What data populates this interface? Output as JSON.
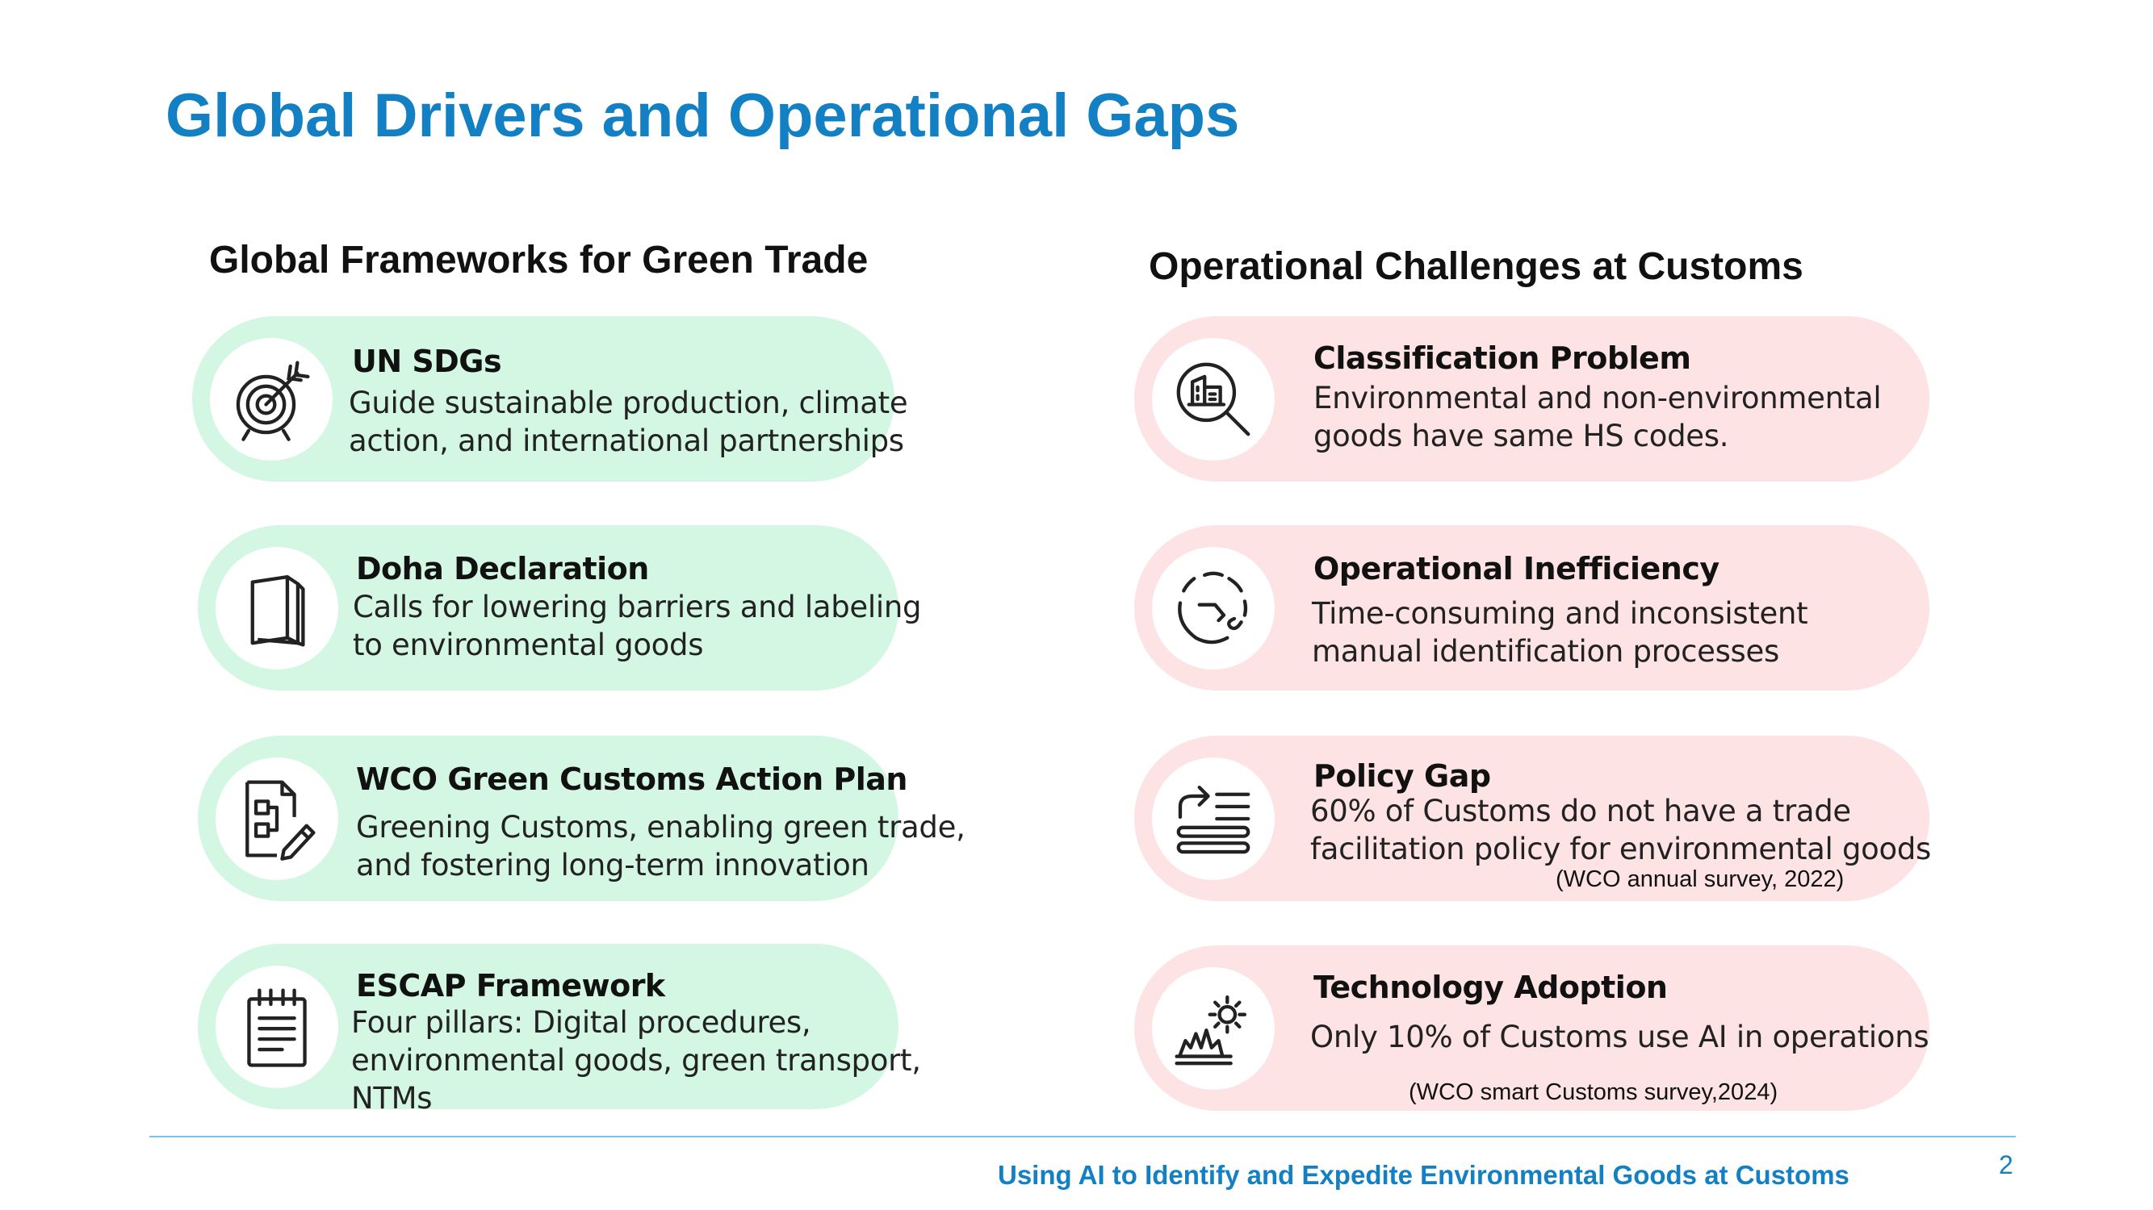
{
  "title": "Global Drivers and Operational Gaps",
  "left_column": {
    "heading": "Global Frameworks for Green Trade",
    "cards": [
      {
        "icon": "target-icon",
        "title": "UN SDGs",
        "desc_lines": [
          "Guide sustainable production, climate",
          "action, and international partnerships"
        ]
      },
      {
        "icon": "book-icon",
        "title": "Doha Declaration",
        "desc_lines": [
          "Calls for lowering barriers and labeling",
          "to environmental goods"
        ]
      },
      {
        "icon": "document-edit-icon",
        "title": "WCO Green Customs Action Plan",
        "desc_lines": [
          "Greening Customs, enabling green trade,",
          "and fostering long-term innovation"
        ]
      },
      {
        "icon": "notepad-icon",
        "title": "ESCAP Framework",
        "desc_lines": [
          "Four pillars: Digital procedures,",
          "environmental goods, green transport,",
          "NTMs"
        ]
      }
    ]
  },
  "right_column": {
    "heading": "Operational Challenges at Customs",
    "cards": [
      {
        "icon": "search-building-icon",
        "title": "Classification Problem",
        "desc_lines": [
          "Environmental and non-environmental",
          "goods have same HS codes."
        ]
      },
      {
        "icon": "dashed-cycle-icon",
        "title": "Operational Inefficiency",
        "desc_lines": [
          "Time-consuming and inconsistent",
          "manual identification processes"
        ]
      },
      {
        "icon": "policy-list-icon",
        "title": "Policy Gap",
        "desc_lines": [
          "60% of Customs do not have a trade",
          "facilitation policy for environmental goods"
        ],
        "note": "(WCO annual survey, 2022)"
      },
      {
        "icon": "factory-gear-icon",
        "title": "Technology Adoption",
        "desc_lines": [
          "Only 10% of Customs use AI in operations"
        ],
        "note": "(WCO smart Customs survey,2024)"
      }
    ]
  },
  "footer": {
    "text": "Using AI to Identify and Expedite Environmental Goods at Customs",
    "page_number": "2"
  },
  "colors": {
    "title_blue": "#1480c4",
    "green_card": "#d4f7e4",
    "pink_card": "#fde3e4"
  }
}
